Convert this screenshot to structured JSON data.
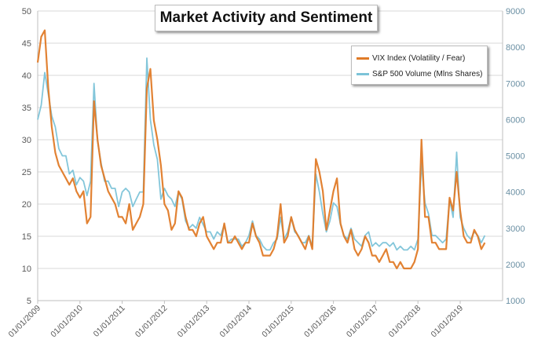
{
  "chart_data": {
    "type": "line",
    "title": "Market Activity and Sentiment",
    "x_tick_labels": [
      "01/01/2009",
      "01/01/2010",
      "01/01/2011",
      "01/01/2012",
      "01/01/2013",
      "01/01/2014",
      "01/01/2015",
      "01/01/2016",
      "01/01/2017",
      "01/01/2018",
      "01/01/2019"
    ],
    "y_left": {
      "ticks": [
        5,
        10,
        15,
        20,
        25,
        30,
        35,
        40,
        45,
        50
      ],
      "ylim": [
        5,
        50
      ]
    },
    "y_right": {
      "ticks": [
        1000,
        2000,
        3000,
        4000,
        5000,
        6000,
        7000,
        8000,
        9000
      ],
      "ylim": [
        1000,
        9000
      ]
    },
    "grid": true,
    "legend_position": "top-right",
    "colors": {
      "vix": "#e07b28",
      "volume": "#7cc3d8"
    },
    "series": [
      {
        "name": "VIX Index (Volatility / Fear)",
        "axis": "left",
        "x": [
          "2009-01",
          "2009-02",
          "2009-03",
          "2009-04",
          "2009-05",
          "2009-06",
          "2009-07",
          "2009-08",
          "2009-09",
          "2009-10",
          "2009-11",
          "2009-12",
          "2010-01",
          "2010-02",
          "2010-03",
          "2010-04",
          "2010-05",
          "2010-06",
          "2010-07",
          "2010-08",
          "2010-09",
          "2010-10",
          "2010-11",
          "2010-12",
          "2011-01",
          "2011-02",
          "2011-03",
          "2011-04",
          "2011-05",
          "2011-06",
          "2011-07",
          "2011-08",
          "2011-09",
          "2011-10",
          "2011-11",
          "2011-12",
          "2012-01",
          "2012-02",
          "2012-03",
          "2012-04",
          "2012-05",
          "2012-06",
          "2012-07",
          "2012-08",
          "2012-09",
          "2012-10",
          "2012-11",
          "2012-12",
          "2013-01",
          "2013-02",
          "2013-03",
          "2013-04",
          "2013-05",
          "2013-06",
          "2013-07",
          "2013-08",
          "2013-09",
          "2013-10",
          "2013-11",
          "2013-12",
          "2014-01",
          "2014-02",
          "2014-03",
          "2014-04",
          "2014-05",
          "2014-06",
          "2014-07",
          "2014-08",
          "2014-09",
          "2014-10",
          "2014-11",
          "2014-12",
          "2015-01",
          "2015-02",
          "2015-03",
          "2015-04",
          "2015-05",
          "2015-06",
          "2015-07",
          "2015-08",
          "2015-09",
          "2015-10",
          "2015-11",
          "2015-12",
          "2016-01",
          "2016-02",
          "2016-03",
          "2016-04",
          "2016-05",
          "2016-06",
          "2016-07",
          "2016-08",
          "2016-09",
          "2016-10",
          "2016-11",
          "2016-12",
          "2017-01",
          "2017-02",
          "2017-03",
          "2017-04",
          "2017-05",
          "2017-06",
          "2017-07",
          "2017-08",
          "2017-09",
          "2017-10",
          "2017-11",
          "2017-12",
          "2018-01",
          "2018-02",
          "2018-03",
          "2018-04",
          "2018-05",
          "2018-06",
          "2018-07",
          "2018-08",
          "2018-09",
          "2018-10",
          "2018-11",
          "2018-12",
          "2019-01",
          "2019-02",
          "2019-03",
          "2019-04",
          "2019-05",
          "2019-06",
          "2019-07",
          "2019-08"
        ],
        "values": [
          42,
          46,
          47,
          38,
          32,
          28,
          26,
          25,
          24,
          23,
          24,
          22,
          21,
          22,
          17,
          18,
          36,
          30,
          26,
          24,
          22,
          21,
          20,
          18,
          18,
          17,
          20,
          16,
          17,
          18,
          20,
          38,
          41,
          33,
          30,
          26,
          20,
          19,
          16,
          17,
          22,
          21,
          18,
          16,
          16,
          15,
          17,
          18,
          15,
          14,
          13,
          14,
          14,
          17,
          14,
          14,
          15,
          14,
          13,
          14,
          14,
          17,
          15,
          14,
          12,
          12,
          12,
          13,
          15,
          20,
          14,
          15,
          18,
          16,
          15,
          14,
          13,
          15,
          13,
          27,
          25,
          22,
          16,
          19,
          22,
          24,
          17,
          15,
          14,
          16,
          13,
          12,
          13,
          15,
          14,
          12,
          12,
          11,
          12,
          13,
          11,
          11,
          10,
          11,
          10,
          10,
          10,
          11,
          13,
          30,
          18,
          18,
          14,
          14,
          13,
          13,
          13,
          21,
          19,
          25,
          19,
          15,
          14,
          14,
          16,
          15,
          13,
          14
        ]
      },
      {
        "name": "S&P 500 Volume (Mlns Shares)",
        "axis": "right",
        "x": [
          "2009-01",
          "2009-02",
          "2009-03",
          "2009-04",
          "2009-05",
          "2009-06",
          "2009-07",
          "2009-08",
          "2009-09",
          "2009-10",
          "2009-11",
          "2009-12",
          "2010-01",
          "2010-02",
          "2010-03",
          "2010-04",
          "2010-05",
          "2010-06",
          "2010-07",
          "2010-08",
          "2010-09",
          "2010-10",
          "2010-11",
          "2010-12",
          "2011-01",
          "2011-02",
          "2011-03",
          "2011-04",
          "2011-05",
          "2011-06",
          "2011-07",
          "2011-08",
          "2011-09",
          "2011-10",
          "2011-11",
          "2011-12",
          "2012-01",
          "2012-02",
          "2012-03",
          "2012-04",
          "2012-05",
          "2012-06",
          "2012-07",
          "2012-08",
          "2012-09",
          "2012-10",
          "2012-11",
          "2012-12",
          "2013-01",
          "2013-02",
          "2013-03",
          "2013-04",
          "2013-05",
          "2013-06",
          "2013-07",
          "2013-08",
          "2013-09",
          "2013-10",
          "2013-11",
          "2013-12",
          "2014-01",
          "2014-02",
          "2014-03",
          "2014-04",
          "2014-05",
          "2014-06",
          "2014-07",
          "2014-08",
          "2014-09",
          "2014-10",
          "2014-11",
          "2014-12",
          "2015-01",
          "2015-02",
          "2015-03",
          "2015-04",
          "2015-05",
          "2015-06",
          "2015-07",
          "2015-08",
          "2015-09",
          "2015-10",
          "2015-11",
          "2015-12",
          "2016-01",
          "2016-02",
          "2016-03",
          "2016-04",
          "2016-05",
          "2016-06",
          "2016-07",
          "2016-08",
          "2016-09",
          "2016-10",
          "2016-11",
          "2016-12",
          "2017-01",
          "2017-02",
          "2017-03",
          "2017-04",
          "2017-05",
          "2017-06",
          "2017-07",
          "2017-08",
          "2017-09",
          "2017-10",
          "2017-11",
          "2017-12",
          "2018-01",
          "2018-02",
          "2018-03",
          "2018-04",
          "2018-05",
          "2018-06",
          "2018-07",
          "2018-08",
          "2018-09",
          "2018-10",
          "2018-11",
          "2018-12",
          "2019-01",
          "2019-02",
          "2019-03",
          "2019-04",
          "2019-05",
          "2019-06",
          "2019-07",
          "2019-08"
        ],
        "values": [
          6000,
          6400,
          7300,
          6700,
          6100,
          5800,
          5200,
          5000,
          5000,
          4500,
          4600,
          4200,
          4400,
          4300,
          3900,
          4300,
          7000,
          5400,
          4800,
          4300,
          4300,
          4100,
          4100,
          3600,
          4000,
          4100,
          4000,
          3600,
          3800,
          4000,
          4000,
          7700,
          6000,
          5300,
          4900,
          3800,
          4100,
          3900,
          3800,
          3600,
          4000,
          3800,
          3200,
          3000,
          3100,
          3000,
          3300,
          3100,
          2900,
          2900,
          2700,
          2900,
          2800,
          3100,
          2600,
          2700,
          2700,
          2700,
          2500,
          2600,
          2800,
          3200,
          2800,
          2700,
          2500,
          2400,
          2400,
          2600,
          2700,
          3300,
          2700,
          2900,
          3300,
          2900,
          2800,
          2600,
          2600,
          2800,
          2500,
          4500,
          4000,
          3400,
          2900,
          3200,
          3700,
          3600,
          3100,
          2800,
          2700,
          3000,
          2700,
          2600,
          2500,
          2800,
          2900,
          2500,
          2600,
          2500,
          2600,
          2600,
          2500,
          2600,
          2400,
          2500,
          2400,
          2400,
          2500,
          2400,
          2700,
          4800,
          3700,
          3400,
          2800,
          2800,
          2700,
          2600,
          2700,
          3800,
          3300,
          5100,
          3300,
          3000,
          2800,
          2700,
          2900,
          2800,
          2600,
          2800
        ]
      }
    ]
  }
}
